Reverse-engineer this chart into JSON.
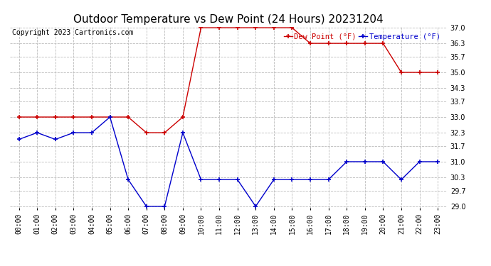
{
  "title": "Outdoor Temperature vs Dew Point (24 Hours) 20231204",
  "copyright": "Copyright 2023 Cartronics.com",
  "legend_dew": "Dew Point (°F)",
  "legend_temp": "Temperature (°F)",
  "hours": [
    "00:00",
    "01:00",
    "02:00",
    "03:00",
    "04:00",
    "05:00",
    "06:00",
    "07:00",
    "08:00",
    "09:00",
    "10:00",
    "11:00",
    "12:00",
    "13:00",
    "14:00",
    "15:00",
    "16:00",
    "17:00",
    "18:00",
    "19:00",
    "20:00",
    "21:00",
    "22:00",
    "23:00"
  ],
  "temperature": [
    32.0,
    32.3,
    32.0,
    32.3,
    32.3,
    33.0,
    30.2,
    29.0,
    29.0,
    32.3,
    30.2,
    30.2,
    30.2,
    29.0,
    30.2,
    30.2,
    30.2,
    30.2,
    31.0,
    31.0,
    31.0,
    30.2,
    31.0,
    31.0
  ],
  "dew_point": [
    33.0,
    33.0,
    33.0,
    33.0,
    33.0,
    33.0,
    33.0,
    32.3,
    32.3,
    33.0,
    37.0,
    37.0,
    37.0,
    37.0,
    37.0,
    37.0,
    36.3,
    36.3,
    36.3,
    36.3,
    36.3,
    35.0,
    35.0,
    35.0
  ],
  "temp_color": "#0000cc",
  "dew_color": "#cc0000",
  "ylim_min": 29.0,
  "ylim_max": 37.0,
  "yticks": [
    29.0,
    29.7,
    30.3,
    31.0,
    31.7,
    32.3,
    33.0,
    33.7,
    34.3,
    35.0,
    35.7,
    36.3,
    37.0
  ],
  "bg_color": "#ffffff",
  "grid_color": "#bbbbbb",
  "title_fontsize": 11,
  "label_fontsize": 7,
  "marker": "+",
  "markersize": 5,
  "linewidth": 1.0
}
